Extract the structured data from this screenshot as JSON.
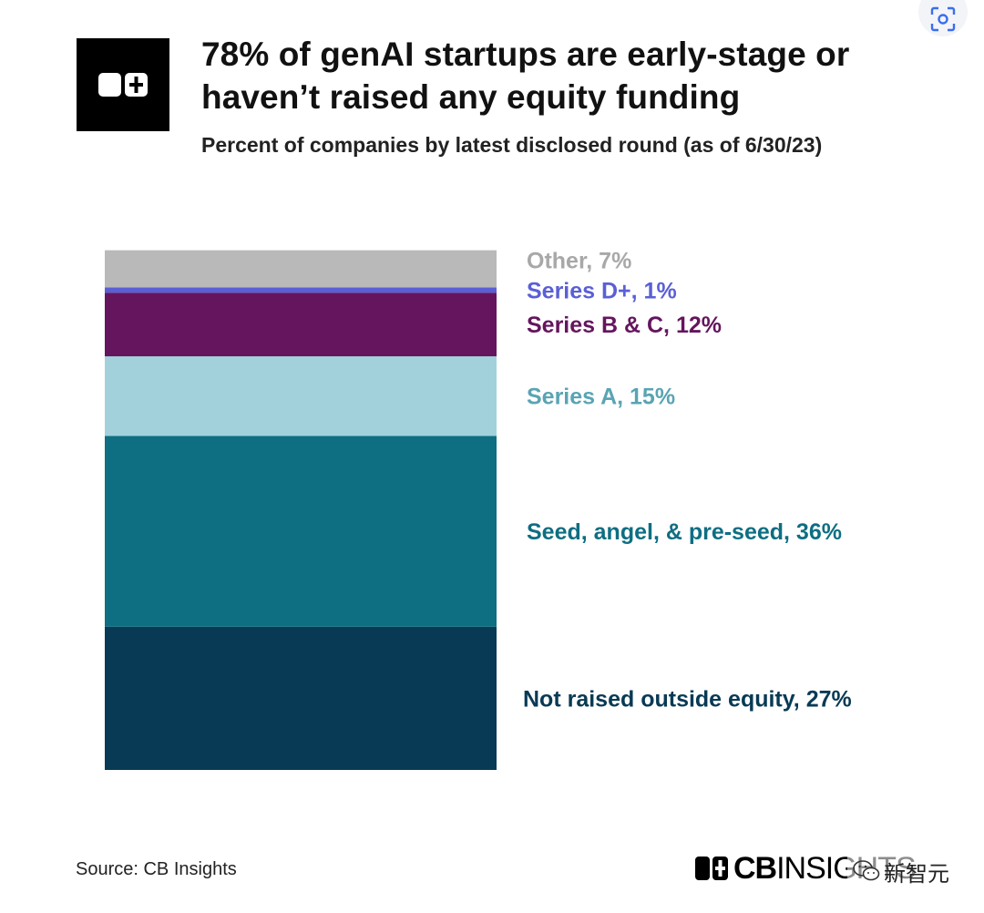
{
  "header": {
    "title_line1": "78% of genAI startups are early-stage or",
    "title_line2": "haven’t raised any equity funding",
    "subtitle": "Percent of companies by latest disclosed round (as of 6/30/23)"
  },
  "chart_data": {
    "type": "bar",
    "stacked": true,
    "categories": [
      ""
    ],
    "series": [
      {
        "name": "Not raised outside equity",
        "values": [
          27
        ],
        "color": "#093a55",
        "label": "Not raised outside equity, 27%"
      },
      {
        "name": "Seed, angel, & pre-seed",
        "values": [
          36
        ],
        "color": "#0e6e82",
        "label": "Seed, angel, & pre-seed, 36%"
      },
      {
        "name": "Series A",
        "values": [
          15
        ],
        "color": "#a2d1dc",
        "label_color": "#5aa4b3",
        "label": "Series A, 15%"
      },
      {
        "name": "Series B & C",
        "values": [
          12
        ],
        "color": "#65155e",
        "label": "Series B & C, 12%"
      },
      {
        "name": "Series D+",
        "values": [
          1
        ],
        "color": "#5a5fd6",
        "label": "Series D+, 1%"
      },
      {
        "name": "Other",
        "values": [
          7
        ],
        "color": "#b9b9b9",
        "label_color": "#a8a8a8",
        "label": "Other, 7%"
      }
    ],
    "ylim": [
      0,
      100
    ],
    "legend": "right",
    "grid": false
  },
  "footer": {
    "source": "Source: CB Insights",
    "brand_bold": "CB",
    "brand_light": "INSIGHTS",
    "watermark": "新智元"
  },
  "icons": {
    "logo": "cb-logo-icon",
    "scan": "scan-icon",
    "wechat": "wechat-icon"
  }
}
